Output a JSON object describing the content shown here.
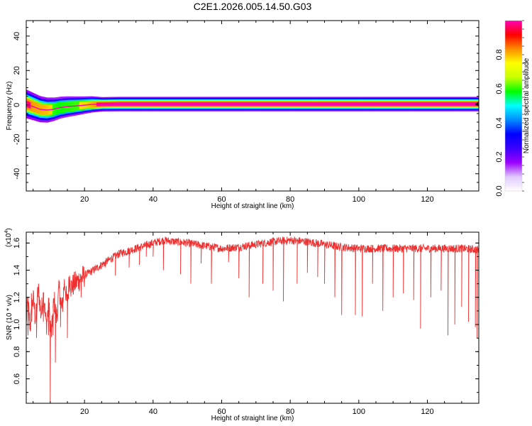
{
  "title": "C2E1.2026.005.14.50.G03",
  "chart_data": [
    {
      "type": "heatmap",
      "title": "C2E1.2026.005.14.50.G03",
      "xlabel": "Height of straight line (km)",
      "ylabel": "Frequency (Hz)",
      "xlim": [
        3,
        135
      ],
      "ylim": [
        -50,
        49
      ],
      "xticks": [
        20,
        40,
        60,
        80,
        100,
        120
      ],
      "yticks": [
        -40,
        -20,
        0,
        20,
        40
      ],
      "ytick_labels": [
        "-40",
        "-20",
        "0",
        "20",
        "40"
      ],
      "colorbar": {
        "label": "Normalized spectral amplitude",
        "range": [
          0,
          1
        ],
        "ticks": [
          "0.0",
          "0.2",
          "0.4",
          "0.6",
          "0.8"
        ],
        "colormap": [
          "#ffffff",
          "#e0c8ff",
          "#9b00ff",
          "#3c00ff",
          "#0000ff",
          "#008cff",
          "#00ffff",
          "#00ff00",
          "#c8ff00",
          "#ffff00",
          "#ff8c00",
          "#ff0000",
          "#ff00b4"
        ]
      },
      "ridge": {
        "note": "spectral energy concentrated near 0 Hz along full height range",
        "center_freq_points": [
          [
            3,
            0.5
          ],
          [
            5,
            -1
          ],
          [
            7,
            -2.5
          ],
          [
            9,
            -3
          ],
          [
            11,
            -2.5
          ],
          [
            13,
            -1.5
          ],
          [
            15,
            -1
          ],
          [
            18,
            -0.5
          ],
          [
            22,
            0.3
          ],
          [
            30,
            0.5
          ],
          [
            135,
            0.5
          ]
        ],
        "half_width_hz": [
          [
            3,
            4
          ],
          [
            10,
            3.5
          ],
          [
            20,
            2.5
          ],
          [
            25,
            2
          ],
          [
            135,
            2
          ]
        ],
        "amplitude": [
          [
            3,
            0.95
          ],
          [
            6,
            0.9
          ],
          [
            9,
            0.85
          ],
          [
            12,
            0.7
          ],
          [
            16,
            0.75
          ],
          [
            20,
            0.8
          ],
          [
            24,
            0.95
          ],
          [
            30,
            1.0
          ],
          [
            135,
            1.0
          ]
        ]
      }
    },
    {
      "type": "line",
      "xlabel": "Height of straight line (km)",
      "ylabel": "SNR (10 * v/v)",
      "y_multiplier": "(x10",
      "y_multiplier_exp": "4",
      "xlim": [
        3,
        135
      ],
      "ylim": [
        0.42,
        1.68
      ],
      "xticks": [
        20,
        40,
        60,
        80,
        100,
        120
      ],
      "yticks": [
        0.6,
        0.8,
        1.0,
        1.2,
        1.4,
        1.6
      ],
      "ytick_labels": [
        "0.6",
        "0.8",
        "1.0",
        "1.2",
        "1.4",
        "1.6"
      ],
      "series": [
        {
          "name": "SNR",
          "color": "#ee3030",
          "trend": [
            [
              3,
              1.05
            ],
            [
              5,
              1.1
            ],
            [
              7,
              1.18
            ],
            [
              9,
              1.08
            ],
            [
              10,
              1.0
            ],
            [
              12,
              1.15
            ],
            [
              14,
              1.22
            ],
            [
              17,
              1.3
            ],
            [
              20,
              1.36
            ],
            [
              25,
              1.44
            ],
            [
              30,
              1.52
            ],
            [
              35,
              1.56
            ],
            [
              40,
              1.6
            ],
            [
              43,
              1.62
            ],
            [
              50,
              1.6
            ],
            [
              55,
              1.58
            ],
            [
              60,
              1.56
            ],
            [
              65,
              1.57
            ],
            [
              70,
              1.59
            ],
            [
              75,
              1.61
            ],
            [
              80,
              1.62
            ],
            [
              85,
              1.61
            ],
            [
              90,
              1.59
            ],
            [
              95,
              1.57
            ],
            [
              100,
              1.56
            ],
            [
              110,
              1.56
            ],
            [
              120,
              1.56
            ],
            [
              130,
              1.56
            ],
            [
              135,
              1.55
            ]
          ],
          "dips": [
            [
              3.5,
              0.92
            ],
            [
              4.5,
              1.23
            ],
            [
              6,
              0.9
            ],
            [
              8,
              1.02
            ],
            [
              9.5,
              0.92
            ],
            [
              10,
              0.43
            ],
            [
              10.8,
              0.92
            ],
            [
              11.5,
              0.72
            ],
            [
              13,
              0.98
            ],
            [
              15,
              0.9
            ],
            [
              19,
              1.2
            ],
            [
              26,
              1.42
            ],
            [
              29,
              1.36
            ],
            [
              33,
              1.42
            ],
            [
              36,
              1.44
            ],
            [
              38,
              1.5
            ],
            [
              40,
              1.5
            ],
            [
              43,
              1.4
            ],
            [
              48,
              1.37
            ],
            [
              51,
              1.3
            ],
            [
              54,
              1.45
            ],
            [
              57,
              1.3
            ],
            [
              62,
              1.46
            ],
            [
              65,
              1.34
            ],
            [
              68,
              1.2
            ],
            [
              72,
              1.3
            ],
            [
              75,
              1.25
            ],
            [
              78,
              1.17
            ],
            [
              82,
              1.3
            ],
            [
              85,
              1.38
            ],
            [
              88,
              1.35
            ],
            [
              90,
              1.3
            ],
            [
              93,
              1.2
            ],
            [
              95,
              1.07
            ],
            [
              99,
              1.07
            ],
            [
              101,
              1.06
            ],
            [
              104,
              1.3
            ],
            [
              107,
              1.1
            ],
            [
              110,
              1.2
            ],
            [
              113,
              1.23
            ],
            [
              116,
              1.18
            ],
            [
              118,
              0.97
            ],
            [
              121,
              1.2
            ],
            [
              124,
              1.25
            ],
            [
              126,
              0.92
            ],
            [
              128,
              1.0
            ],
            [
              130,
              1.13
            ],
            [
              132,
              1.02
            ],
            [
              134,
              0.98
            ],
            [
              134.5,
              0.9
            ]
          ],
          "noise_amplitude": 0.03
        }
      ]
    }
  ]
}
